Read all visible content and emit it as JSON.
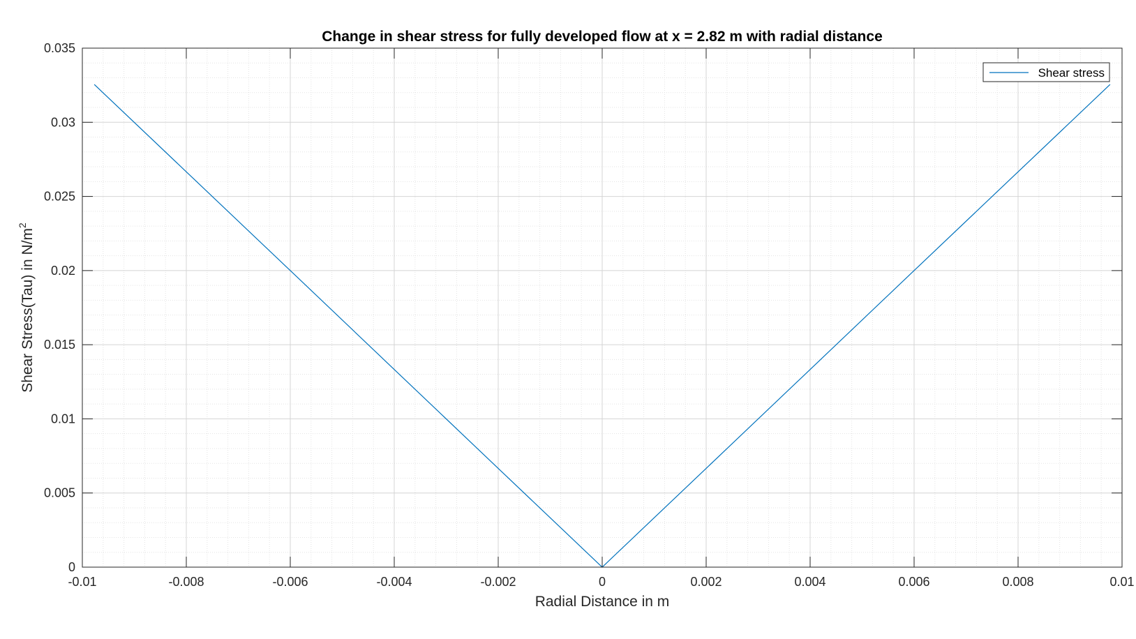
{
  "chart_data": {
    "type": "line",
    "title": "Change in shear stress for fully developed flow at x = 2.82 m with radial distance",
    "xlabel": "Radial Distance in m",
    "ylabel": "Shear Stress(Tau) in N/m",
    "ylabel_superscript": "2",
    "xlim": [
      -0.01,
      0.01
    ],
    "ylim": [
      0,
      0.035
    ],
    "xticks": [
      -0.01,
      -0.008,
      -0.006,
      -0.004,
      -0.002,
      0,
      0.002,
      0.004,
      0.006,
      0.008,
      0.01
    ],
    "xtick_labels": [
      "-0.01",
      "-0.008",
      "-0.006",
      "-0.004",
      "-0.002",
      "0",
      "0.002",
      "0.004",
      "0.006",
      "0.008",
      "0.01"
    ],
    "yticks": [
      0,
      0.005,
      0.01,
      0.015,
      0.02,
      0.025,
      0.03,
      0.035
    ],
    "ytick_labels": [
      "0",
      "0.005",
      "0.01",
      "0.015",
      "0.02",
      "0.025",
      "0.03",
      "0.035"
    ],
    "grid": true,
    "minor_grid": true,
    "legend_position": "top-right",
    "series": [
      {
        "name": "Shear stress",
        "color": "#0072BD",
        "x": [
          -0.00977,
          -0.008,
          -0.006,
          -0.004,
          -0.002,
          0,
          0.002,
          0.004,
          0.006,
          0.008,
          0.00977
        ],
        "y": [
          0.03255,
          0.02666,
          0.02,
          0.01333,
          0.00666,
          0,
          0.00666,
          0.01333,
          0.02,
          0.02666,
          0.03255
        ]
      }
    ]
  }
}
